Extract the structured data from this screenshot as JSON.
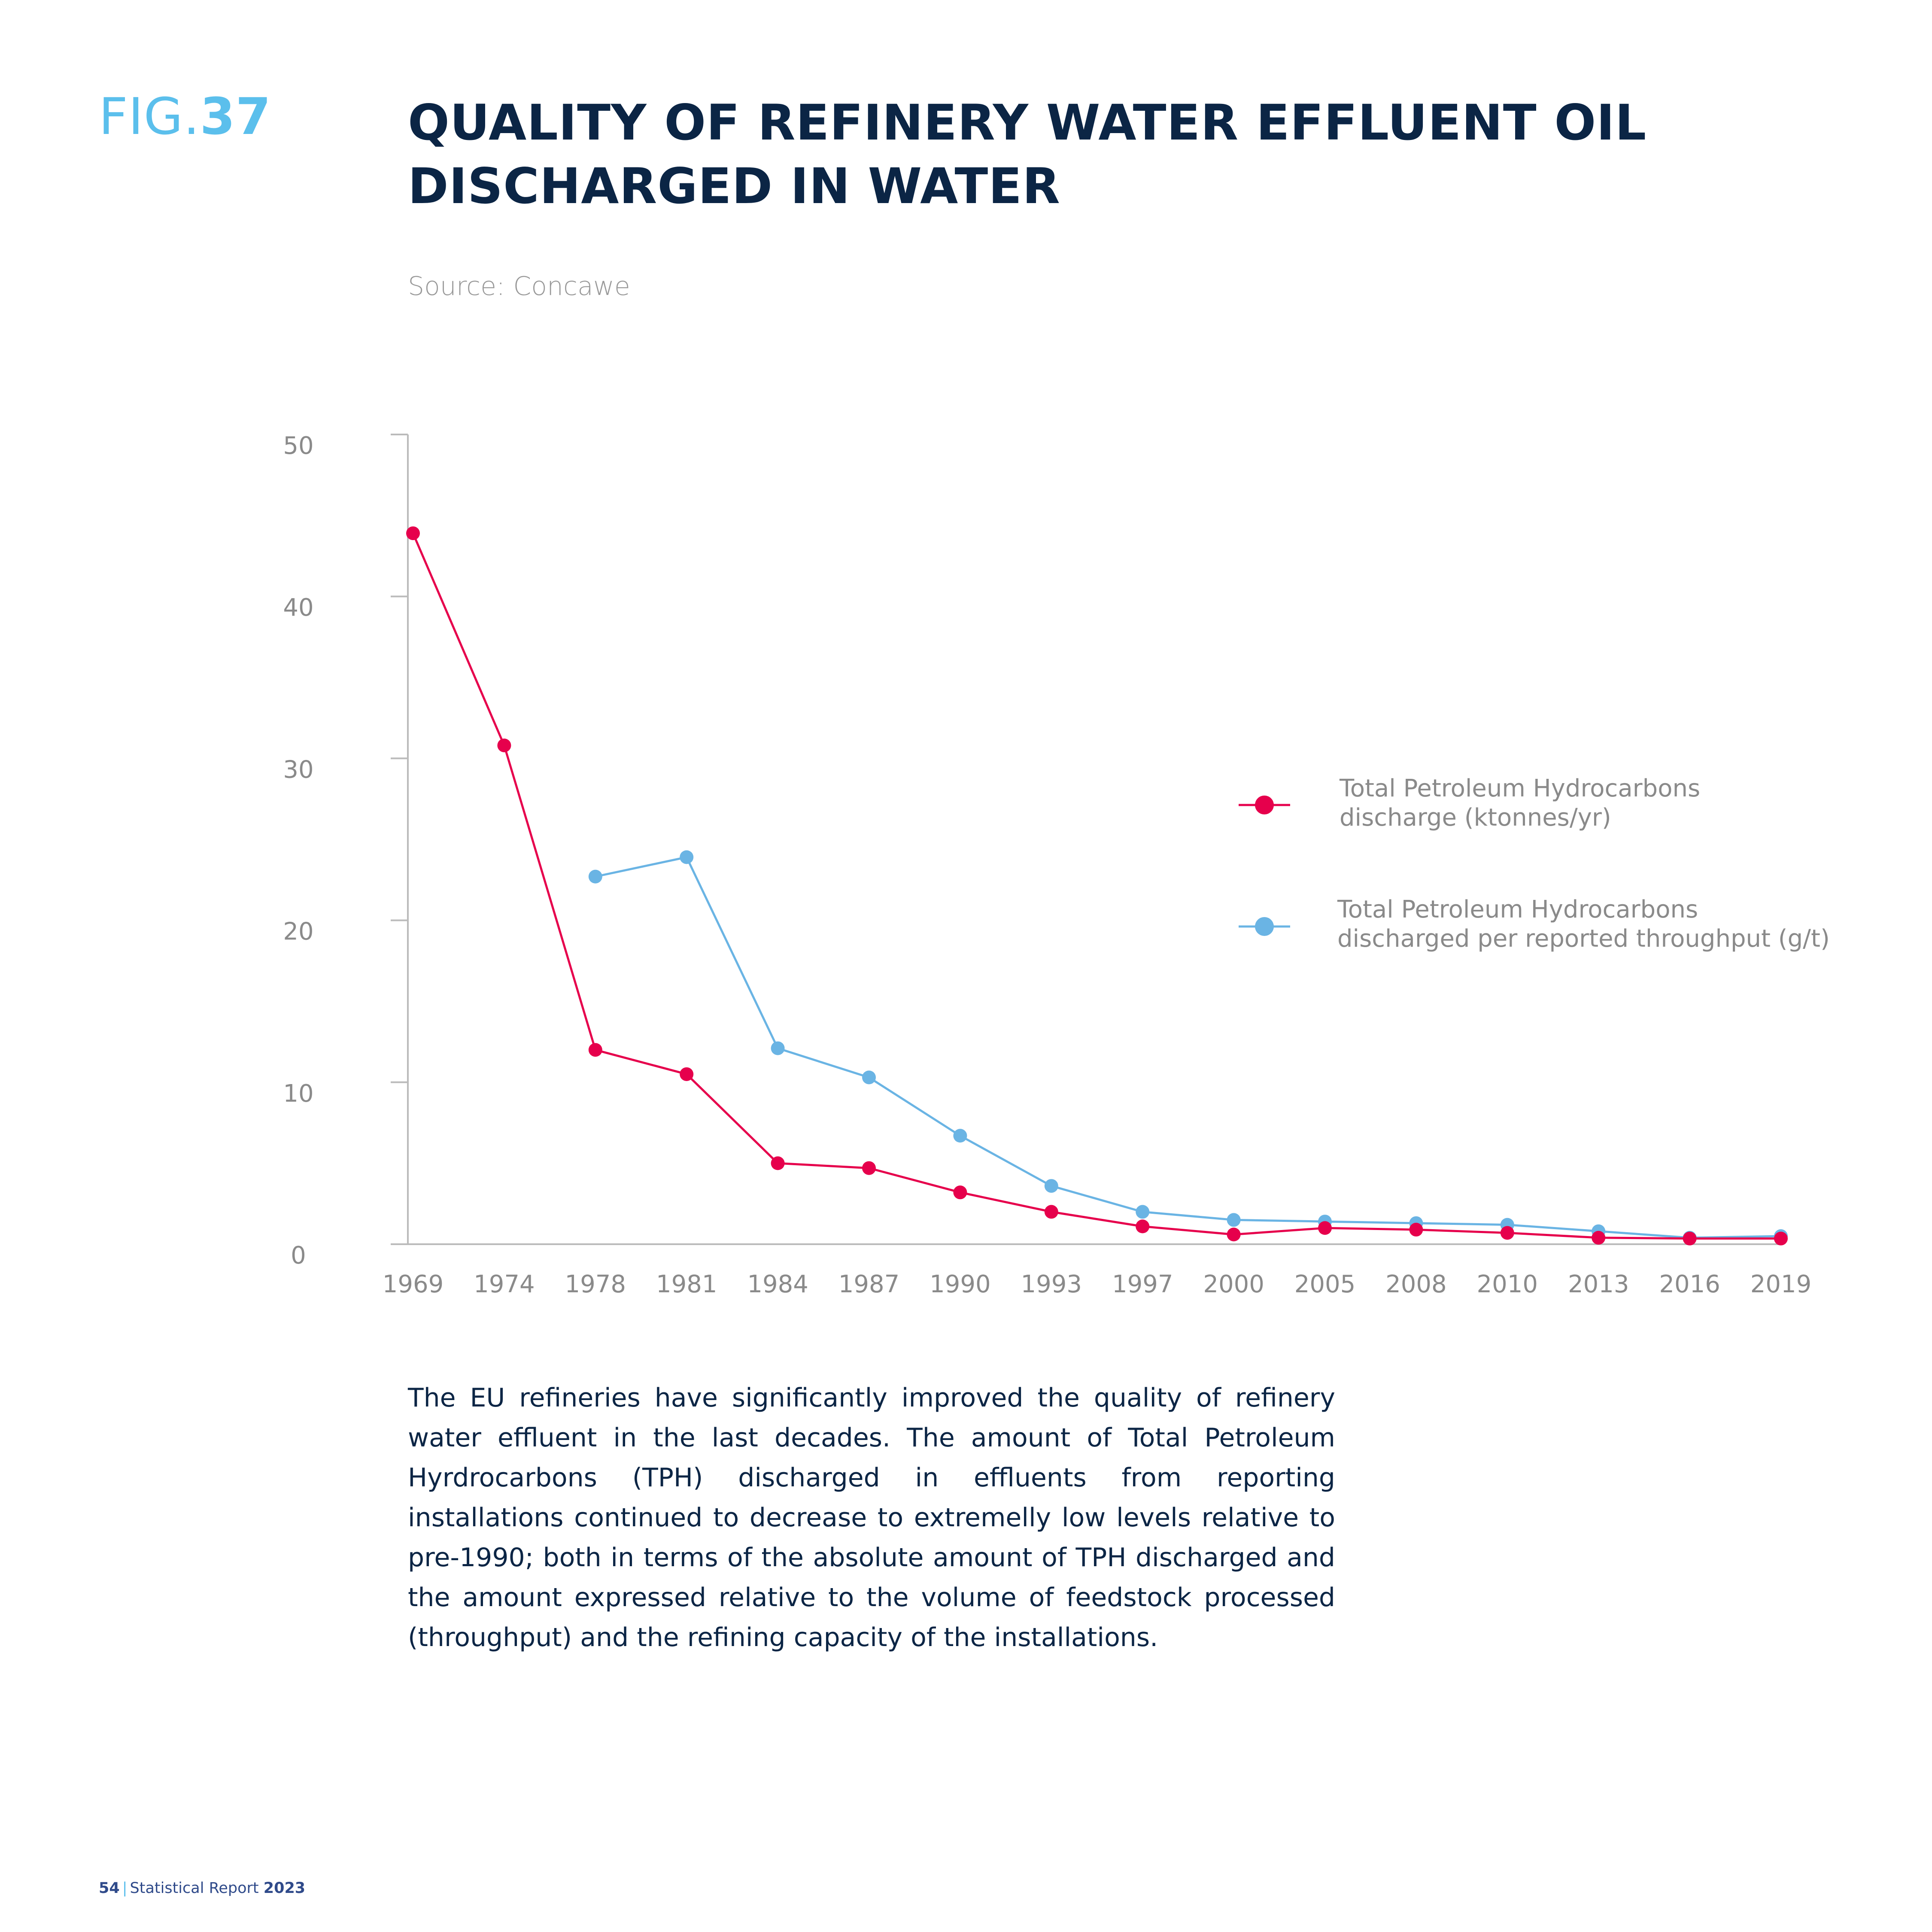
{
  "figure": {
    "prefix": "FIG.",
    "number": "37"
  },
  "title": "QUALITY OF REFINERY WATER EFFLUENT OIL DISCHARGED IN WATER",
  "source": "Source: Concawe",
  "body_text": "The EU refineries have significantly improved the quality of refinery water effluent in the last decades. The amount of Total Petroleum Hyrdrocarbons (TPH) discharged in effluents from reporting installations continued to decrease to extremelly low levels relative to pre-1990; both in terms of the absolute amount of TPH discharged and the amount expressed relative to the volume of feedstock processed (throughput) and the refining capacity of the installations.",
  "footer": {
    "page": "54",
    "report": "Statistical Report",
    "year": "2023"
  },
  "colors": {
    "red": "#e6004c",
    "blue": "#6ab4e4",
    "axis": "#bbbbbb",
    "tick_text": "#8a8a8a",
    "title": "#0b2545",
    "accent": "#5bbfec"
  },
  "chart_data": {
    "type": "line",
    "title": "",
    "xlabel": "",
    "ylabel": "",
    "categories": [
      "1969",
      "1974",
      "1978",
      "1981",
      "1984",
      "1987",
      "1990",
      "1993",
      "1997",
      "2000",
      "2005",
      "2008",
      "2010",
      "2013",
      "2016",
      "2019"
    ],
    "ylim": [
      0,
      50
    ],
    "yticks": [
      0,
      10,
      20,
      30,
      40,
      50
    ],
    "grid": false,
    "legend_position": "right",
    "series": [
      {
        "name": "Total Petroleum Hydrocarbons discharge (ktonnes/yr)",
        "legend_lines": [
          "Total Petroleum Hydrocarbons",
          "discharge (ktonnes/yr)"
        ],
        "color": "#e6004c",
        "values": [
          43.9,
          30.8,
          12.0,
          10.5,
          5.0,
          4.7,
          3.2,
          2.0,
          1.1,
          0.6,
          1.0,
          0.9,
          0.7,
          0.4,
          0.35,
          0.35
        ]
      },
      {
        "name": "Total Petroleum Hydrocarbons discharged per reported throughput (g/t)",
        "legend_lines": [
          "Total Petroleum Hydrocarbons",
          "discharged per reported throughput (g/t)"
        ],
        "color": "#6ab4e4",
        "values": [
          null,
          null,
          22.7,
          23.9,
          12.1,
          10.3,
          6.7,
          3.6,
          2.0,
          1.5,
          1.4,
          1.3,
          1.2,
          0.8,
          0.4,
          0.5
        ]
      }
    ]
  }
}
